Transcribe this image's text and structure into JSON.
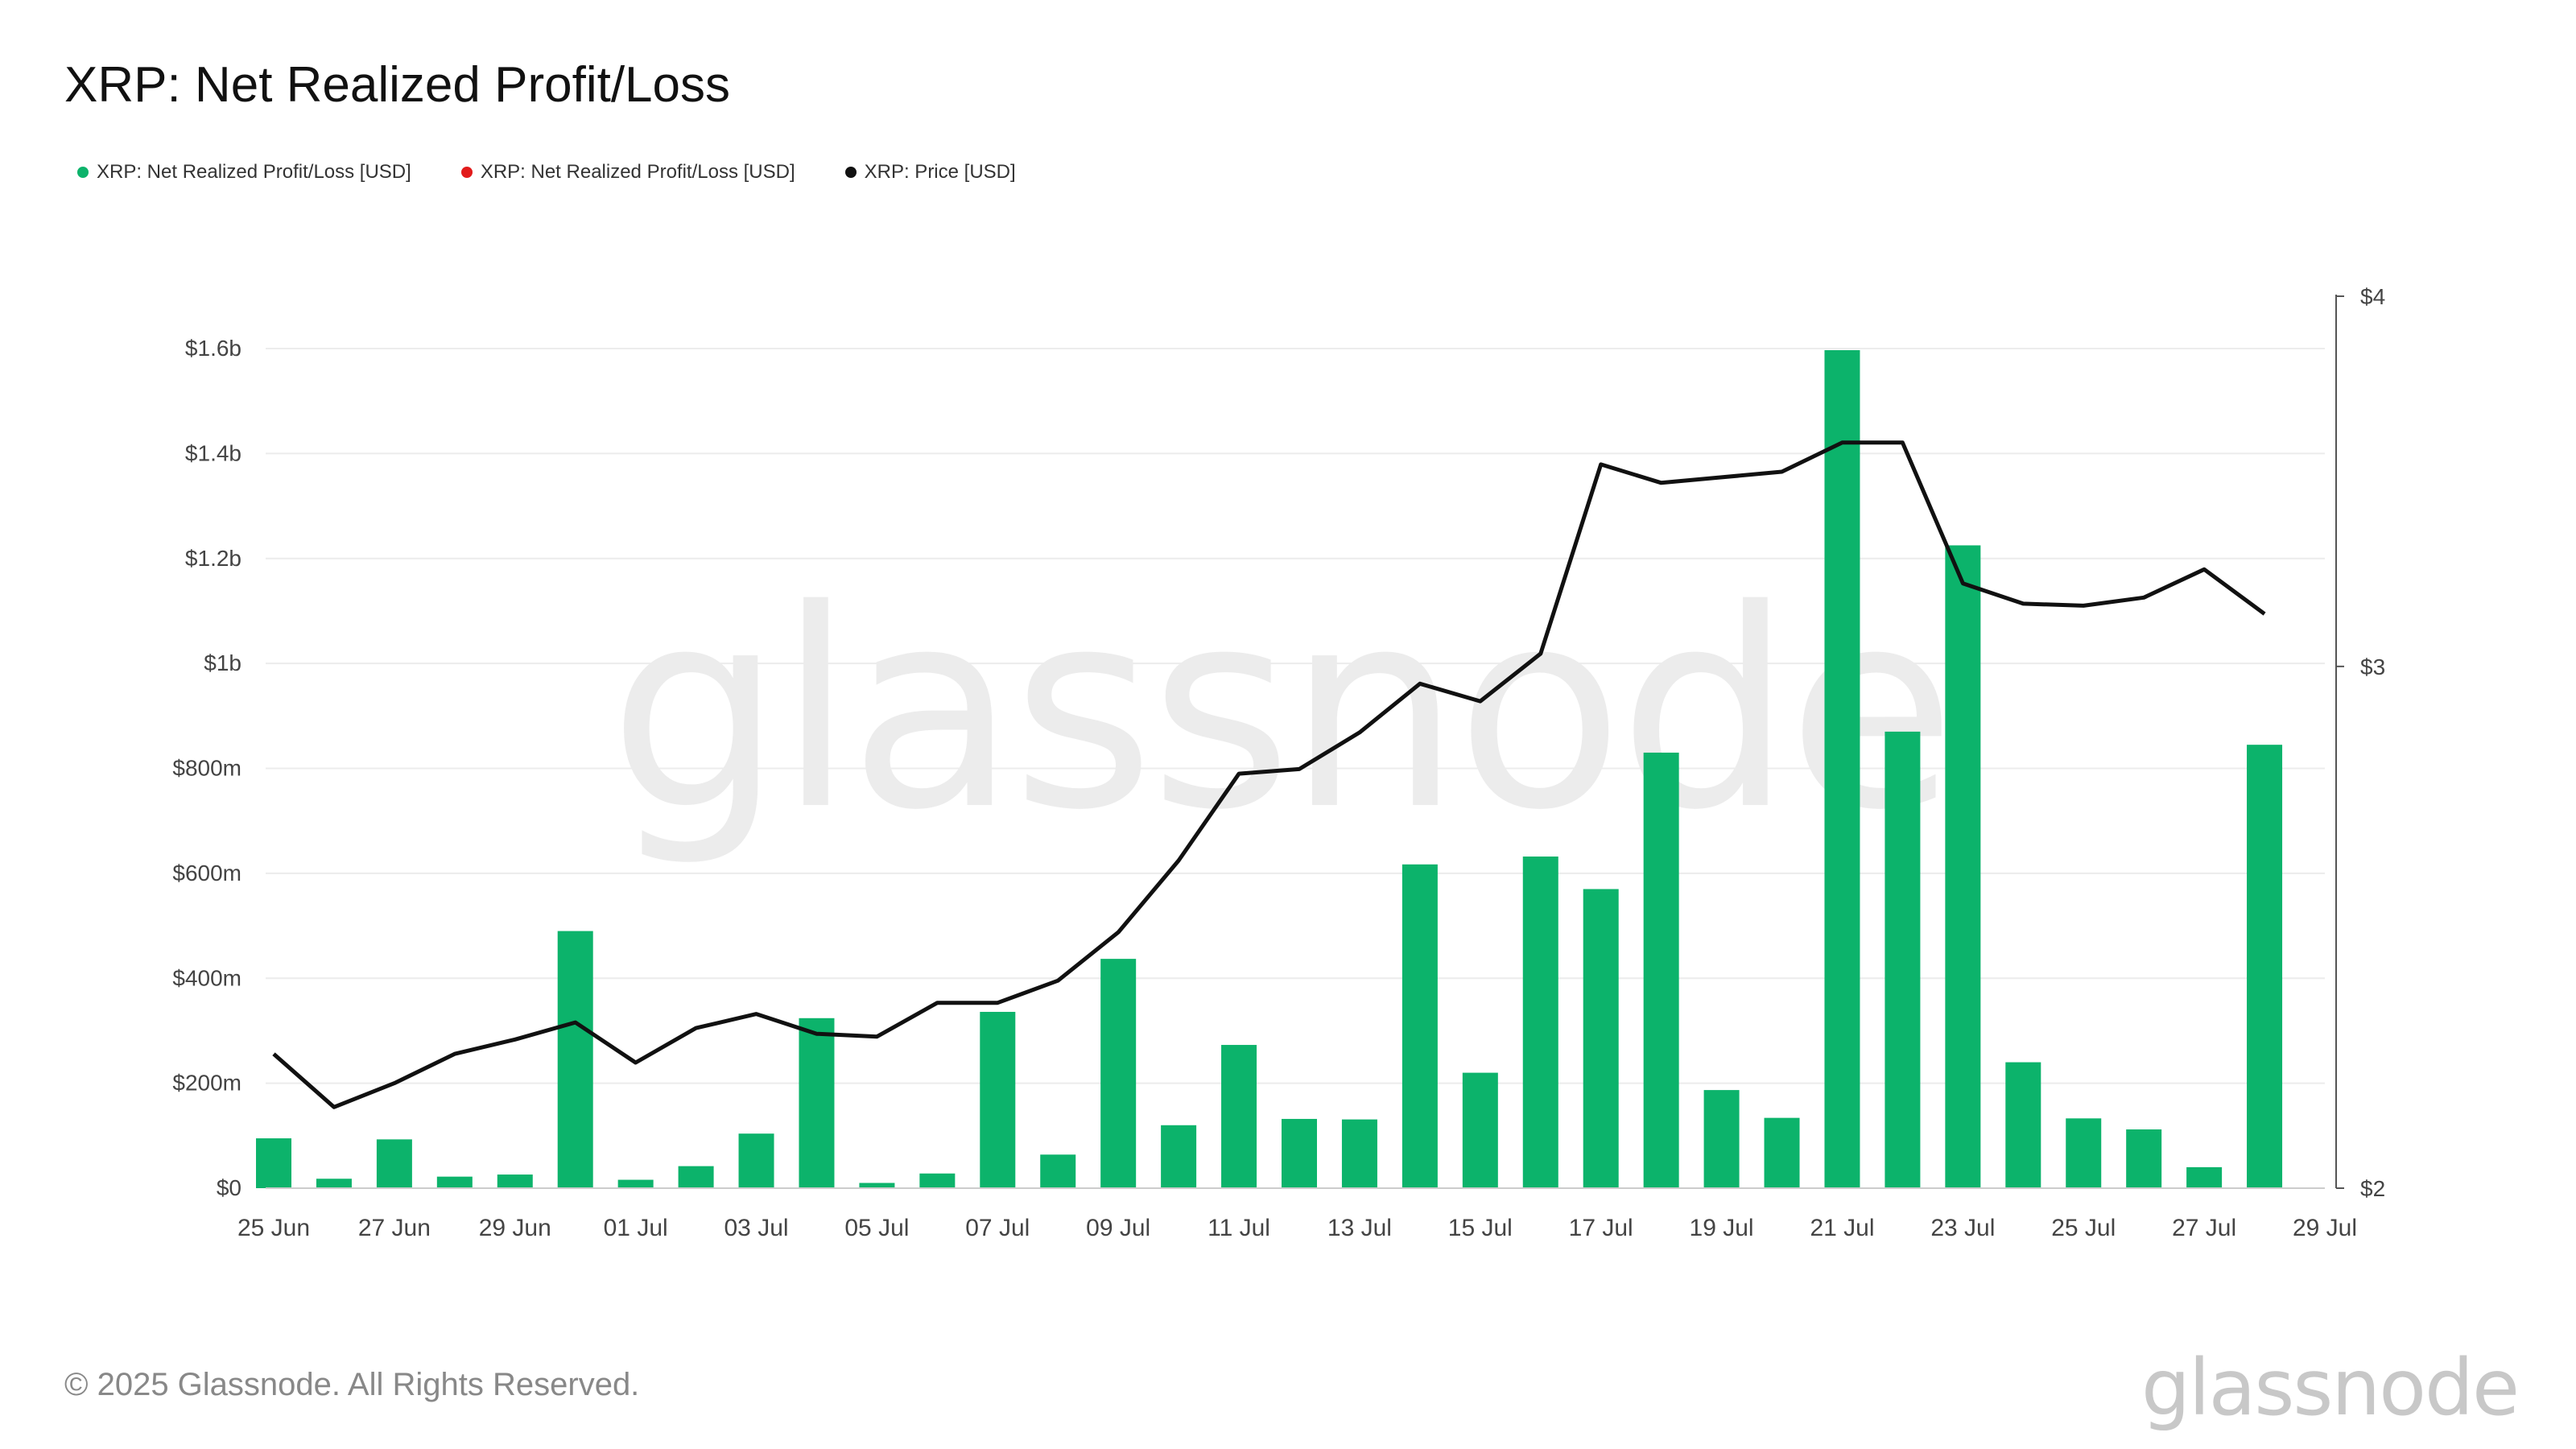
{
  "header": {
    "title": "XRP: Net Realized Profit/Loss"
  },
  "legend": [
    {
      "label": "XRP: Net Realized Profit/Loss [USD]",
      "color": "#0cb36b"
    },
    {
      "label": "XRP: Net Realized Profit/Loss [USD]",
      "color": "#e21b1b"
    },
    {
      "label": "XRP: Price [USD]",
      "color": "#111111"
    }
  ],
  "watermark": "glassnode",
  "footer": {
    "copyright": "© 2025 Glassnode. All Rights Reserved.",
    "brand": "glassnode"
  },
  "chart_data": {
    "type": "bar",
    "title": "XRP: Net Realized Profit/Loss",
    "x": [
      "25 Jun",
      "26 Jun",
      "27 Jun",
      "28 Jun",
      "29 Jun",
      "30 Jun",
      "01 Jul",
      "02 Jul",
      "03 Jul",
      "04 Jul",
      "05 Jul",
      "06 Jul",
      "07 Jul",
      "08 Jul",
      "09 Jul",
      "10 Jul",
      "11 Jul",
      "12 Jul",
      "13 Jul",
      "14 Jul",
      "15 Jul",
      "16 Jul",
      "17 Jul",
      "18 Jul",
      "19 Jul",
      "20 Jul",
      "21 Jul",
      "22 Jul",
      "23 Jul",
      "24 Jul",
      "25 Jul",
      "26 Jul",
      "27 Jul",
      "28 Jul"
    ],
    "x_ticks": [
      "25 Jun",
      "27 Jun",
      "29 Jun",
      "01 Jul",
      "03 Jul",
      "05 Jul",
      "07 Jul",
      "09 Jul",
      "11 Jul",
      "13 Jul",
      "15 Jul",
      "17 Jul",
      "19 Jul",
      "21 Jul",
      "23 Jul",
      "25 Jul",
      "27 Jul",
      "29 Jul"
    ],
    "series": [
      {
        "name": "XRP: Net Realized Profit/Loss [USD]",
        "type": "bar",
        "axis": "left",
        "color": "#0cb36b",
        "values": [
          95000000,
          18000000,
          93000000,
          22000000,
          26000000,
          490000000,
          16000000,
          42000000,
          104000000,
          324000000,
          10000000,
          28000000,
          336000000,
          64000000,
          437000000,
          120000000,
          273000000,
          132000000,
          131000000,
          617000000,
          220000000,
          632000000,
          570000000,
          830000000,
          187000000,
          134000000,
          1597000000,
          870000000,
          1225000000,
          240000000,
          133000000,
          112000000,
          40000000,
          845000000
        ]
      },
      {
        "name": "XRP: Price [USD]",
        "type": "line",
        "axis": "right",
        "color": "#111111",
        "values": [
          2.22,
          2.13,
          2.17,
          2.22,
          2.245,
          2.275,
          2.205,
          2.265,
          2.29,
          2.255,
          2.25,
          2.31,
          2.31,
          2.35,
          2.44,
          2.58,
          2.76,
          2.77,
          2.85,
          2.96,
          2.92,
          3.03,
          3.51,
          3.46,
          3.475,
          3.49,
          3.57,
          3.57,
          3.2,
          3.15,
          3.145,
          3.165,
          3.235,
          3.125
        ]
      }
    ],
    "y_left": {
      "ticks": [
        "$0",
        "$200m",
        "$400m",
        "$600m",
        "$800m",
        "$1b",
        "$1.2b",
        "$1.4b",
        "$1.6b"
      ],
      "tick_values": [
        0,
        200000000,
        400000000,
        600000000,
        800000000,
        1000000000,
        1200000000,
        1400000000,
        1600000000
      ],
      "range": [
        0,
        1600000000
      ]
    },
    "y_right": {
      "ticks": [
        "$2",
        "$3",
        "$4"
      ],
      "tick_values": [
        2,
        3,
        4
      ],
      "scale": "log",
      "range": [
        2,
        4
      ]
    },
    "grid": true,
    "legend_position": "top-left"
  }
}
